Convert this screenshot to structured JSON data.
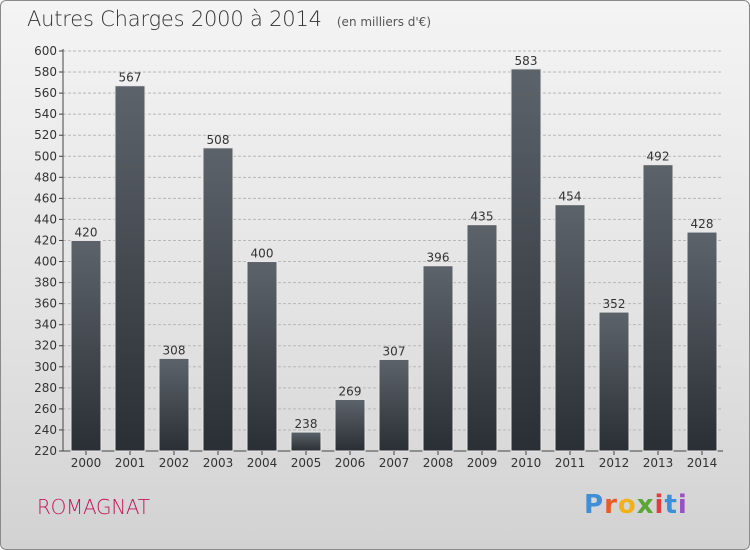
{
  "title": "Autres Charges 2000 à 2014",
  "unit_note": "(en milliers d'€)",
  "location": "ROMAGNAT",
  "logo": {
    "text": "Proxiti",
    "letters": [
      "P",
      "r",
      "o",
      "x",
      "i",
      "t",
      "i"
    ],
    "colors": [
      "#3f8fd6",
      "#e85c2a",
      "#f0b21b",
      "#5aa636",
      "#e23c3c",
      "#3f8fd6",
      "#9b4fc2"
    ]
  },
  "colors": {
    "bar_top": "#5d636a",
    "bar_bottom": "#2a2f35",
    "grid": "#b8b8b8",
    "axis": "#444444",
    "city": "#c2185b"
  },
  "chart_data": {
    "type": "bar",
    "title": "Autres Charges 2000 à 2014",
    "subtitle": "(en milliers d'€)",
    "categories": [
      "2000",
      "2001",
      "2002",
      "2003",
      "2004",
      "2005",
      "2006",
      "2007",
      "2008",
      "2009",
      "2010",
      "2011",
      "2012",
      "2013",
      "2014"
    ],
    "values": [
      420,
      567,
      308,
      508,
      400,
      238,
      269,
      307,
      396,
      435,
      583,
      454,
      352,
      492,
      428
    ],
    "ylim": [
      220,
      600
    ],
    "ytick_step": 20,
    "yticks": [
      "220",
      "240",
      "260",
      "280",
      "300",
      "320",
      "340",
      "360",
      "380",
      "400",
      "420",
      "440",
      "460",
      "480",
      "500",
      "520",
      "540",
      "560",
      "580",
      "600"
    ],
    "grid": true,
    "legend": "none"
  }
}
